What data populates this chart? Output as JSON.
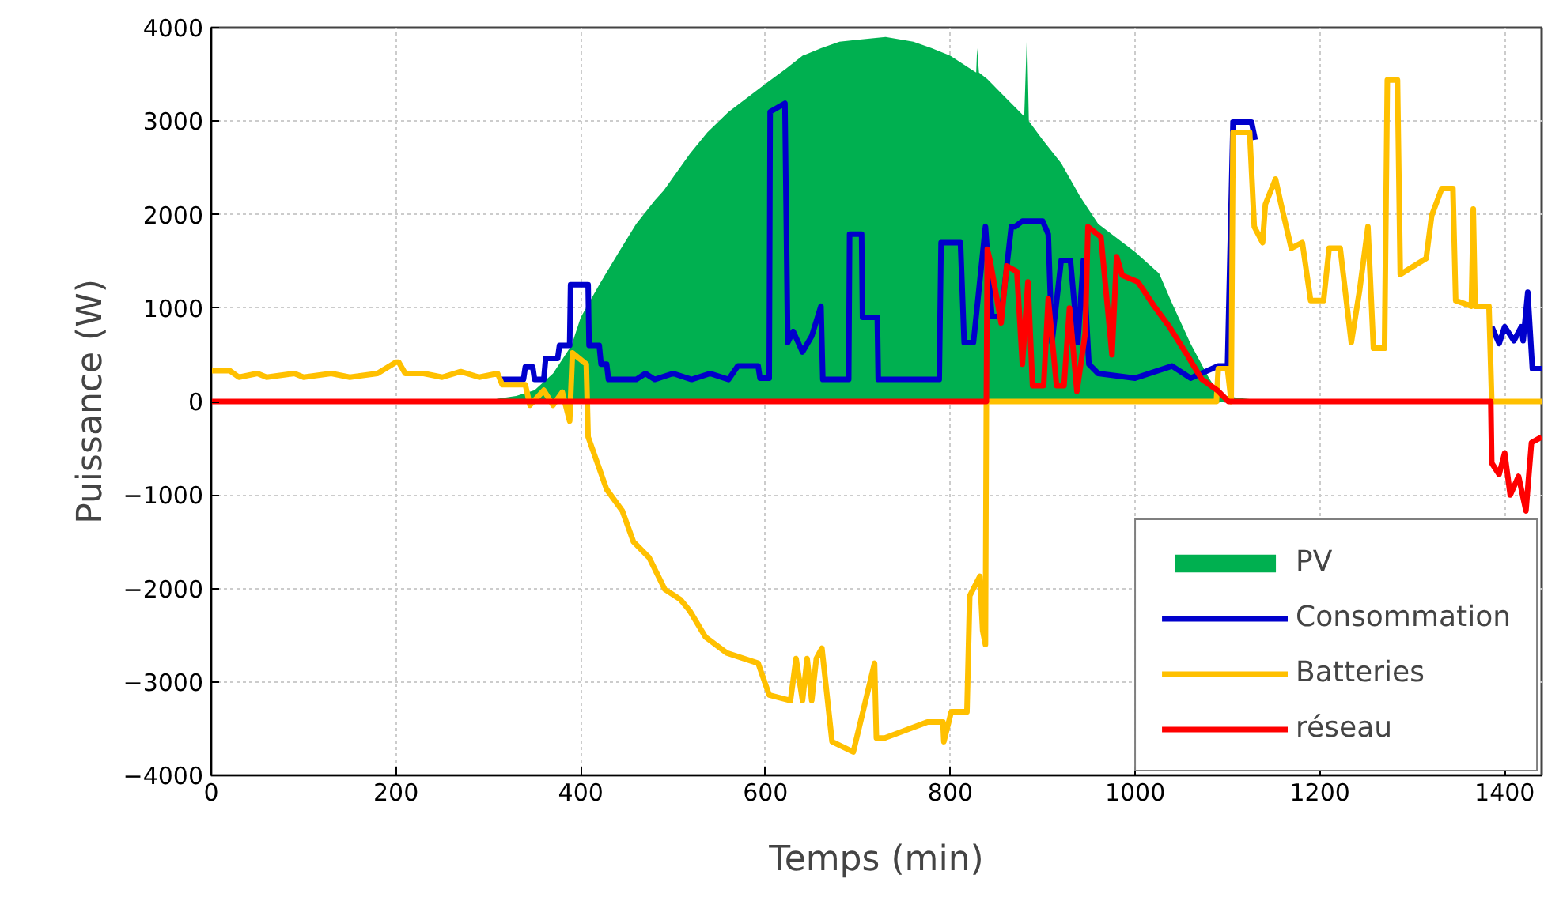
{
  "chart_data": {
    "type": "line",
    "xlabel": "Temps (min)",
    "ylabel": "Puissance (W)",
    "xlim": [
      0,
      1440
    ],
    "ylim": [
      -4000,
      4000
    ],
    "xticks": [
      0,
      200,
      400,
      600,
      800,
      1000,
      1200,
      1400
    ],
    "yticks": [
      -4000,
      -3000,
      -2000,
      -1000,
      0,
      1000,
      2000,
      3000,
      4000
    ],
    "grid": true,
    "legend": "bottom right",
    "series": [
      {
        "name": "PV",
        "type": "area",
        "color": "#00b050",
        "x": [
          300,
          310,
          330,
          350,
          370,
          390,
          400,
          420,
          440,
          460,
          480,
          490,
          500,
          518,
          537,
          560,
          580,
          600,
          622,
          640,
          660,
          680,
          700,
          730,
          760,
          780,
          800,
          820,
          828,
          829,
          831,
          840,
          860,
          880,
          883,
          885,
          900,
          920,
          940,
          960,
          980,
          1000,
          1026,
          1040,
          1060,
          1080,
          1092,
          1110,
          1130,
          1160
        ],
        "values": [
          0,
          30,
          60,
          120,
          300,
          600,
          900,
          1250,
          1580,
          1900,
          2150,
          2260,
          2400,
          2650,
          2880,
          3100,
          3250,
          3400,
          3560,
          3700,
          3780,
          3850,
          3870,
          3900,
          3850,
          3780,
          3700,
          3570,
          3520,
          3780,
          3520,
          3450,
          3250,
          3050,
          3950,
          3000,
          2800,
          2550,
          2200,
          1900,
          1750,
          1600,
          1370,
          1050,
          620,
          250,
          70,
          40,
          20,
          0
        ]
      },
      {
        "name": "Consommation",
        "color": "#0000cc",
        "x": [
          314,
          338,
          340,
          348,
          350,
          360,
          362,
          375,
          377,
          388,
          389,
          408,
          409,
          420,
          422,
          428,
          430,
          460,
          470,
          480,
          500,
          520,
          540,
          560,
          570,
          592,
          594,
          604,
          605,
          621,
          624,
          630,
          640,
          650,
          660,
          662,
          690,
          691,
          704,
          705,
          721,
          722,
          788,
          790,
          811,
          815,
          825,
          838,
          845,
          855,
          866,
          870,
          878,
          900,
          906,
          910,
          920,
          930,
          938,
          944,
          950,
          960,
          1000,
          1040,
          1060,
          1090,
          1100,
          1106,
          1120,
          1126,
          1130,
          null,
          1386,
          1394,
          1400,
          1410,
          1418,
          1420,
          1425,
          1430,
          1440
        ],
        "values": [
          236,
          236,
          370,
          370,
          236,
          236,
          460,
          460,
          600,
          600,
          1250,
          1250,
          600,
          600,
          400,
          400,
          236,
          236,
          300,
          236,
          300,
          236,
          300,
          236,
          380,
          380,
          250,
          250,
          3100,
          3190,
          630,
          750,
          530,
          700,
          1020,
          236,
          236,
          1790,
          1790,
          900,
          900,
          236,
          236,
          1700,
          1700,
          630,
          630,
          1870,
          910,
          910,
          1870,
          1870,
          1930,
          1930,
          1790,
          630,
          1510,
          1510,
          630,
          1510,
          400,
          300,
          250,
          380,
          250,
          380,
          380,
          2990,
          2990,
          2990,
          2800,
          null,
          800,
          620,
          800,
          650,
          800,
          650,
          1170,
          350,
          350
        ]
      },
      {
        "name": "Batteries",
        "color": "#ffc000",
        "x": [
          0,
          20,
          30,
          50,
          60,
          90,
          100,
          130,
          150,
          180,
          200,
          203,
          210,
          230,
          250,
          270,
          290,
          310,
          315,
          340,
          345,
          360,
          370,
          380,
          388,
          391,
          406,
          408,
          428,
          445,
          457,
          474,
          491,
          508,
          518,
          535,
          558,
          592,
          604,
          627,
          633,
          640,
          645,
          650,
          655,
          661,
          672,
          695,
          718,
          720,
          729,
          775,
          792,
          793,
          801,
          818,
          821,
          832,
          835,
          838,
          839,
          900,
          1000,
          1088,
          1090,
          1100,
          1104,
          1106,
          1124,
          1129,
          1138,
          1141,
          1152,
          1158,
          1169,
          1181,
          1190,
          1204,
          1210,
          1222,
          1234,
          1243,
          1252,
          1258,
          1270,
          1273,
          1284,
          1287,
          1315,
          1321,
          1332,
          1344,
          1347,
          1364,
          1366,
          1368,
          1383,
          1386,
          1440
        ],
        "values": [
          330,
          330,
          260,
          300,
          260,
          300,
          260,
          300,
          260,
          300,
          420,
          420,
          300,
          300,
          260,
          320,
          260,
          300,
          180,
          180,
          -40,
          120,
          -40,
          100,
          -210,
          520,
          400,
          -380,
          -940,
          -1170,
          -1500,
          -1670,
          -2010,
          -2120,
          -2240,
          -2520,
          -2690,
          -2800,
          -3140,
          -3200,
          -2750,
          -3200,
          -2750,
          -3200,
          -2750,
          -2640,
          -3640,
          -3750,
          -2800,
          -3600,
          -3600,
          -3430,
          -3430,
          -3640,
          -3320,
          -3320,
          -2080,
          -1870,
          -2450,
          -2600,
          0,
          0,
          0,
          0,
          350,
          350,
          0,
          2880,
          2880,
          1870,
          1700,
          2110,
          2380,
          2110,
          1640,
          1700,
          1080,
          1080,
          1640,
          1640,
          630,
          1190,
          1870,
          570,
          570,
          3440,
          3440,
          1360,
          1530,
          1990,
          2280,
          2280,
          1080,
          1020,
          2060,
          1020,
          1020,
          0,
          0
        ]
      },
      {
        "name": "réseau",
        "color": "#ff0000",
        "x": [
          0,
          839,
          840,
          843,
          855,
          861,
          872,
          878,
          884,
          889,
          901,
          906,
          915,
          923,
          929,
          937,
          946,
          949,
          963,
          975,
          980,
          986,
          1003,
          1020,
          1037,
          1055,
          1072,
          1089,
          1101,
          1385,
          1386,
          1394,
          1400,
          1406,
          1415,
          1423,
          1429,
          1440
        ],
        "values": [
          0,
          0,
          1630,
          1510,
          840,
          1450,
          1390,
          400,
          1280,
          170,
          170,
          1100,
          170,
          170,
          1000,
          110,
          730,
          1870,
          1760,
          500,
          1550,
          1350,
          1280,
          1030,
          800,
          520,
          240,
          120,
          0,
          0,
          -660,
          -780,
          -550,
          -1000,
          -800,
          -1170,
          -440,
          -380
        ]
      }
    ]
  }
}
